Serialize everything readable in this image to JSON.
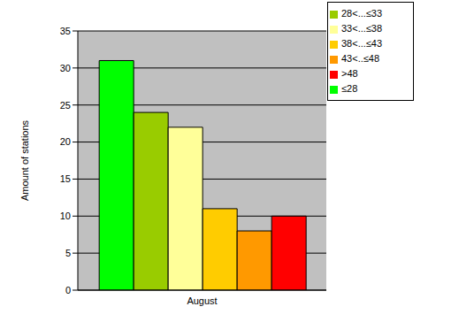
{
  "chart_data": {
    "type": "bar",
    "y_label": "Amount of stations",
    "categories": [
      "August"
    ],
    "series": [
      {
        "name": "≤28",
        "color": "#00ff00",
        "values": [
          31
        ]
      },
      {
        "name": "28<...≤33",
        "color": "#99cc00",
        "values": [
          24
        ]
      },
      {
        "name": "33<...≤38",
        "color": "#ffff99",
        "values": [
          22
        ]
      },
      {
        "name": "38<...≤43",
        "color": "#ffcc00",
        "values": [
          11
        ]
      },
      {
        "name": "43<..≤48",
        "color": "#ff9900",
        "values": [
          8
        ]
      },
      {
        "name": ">48",
        "color": "#ff0000",
        "values": [
          10
        ]
      }
    ],
    "ylim": [
      0,
      35
    ],
    "yticks": [
      0,
      5,
      10,
      15,
      20,
      25,
      30,
      35
    ],
    "grid": true,
    "legend": "top-right"
  }
}
